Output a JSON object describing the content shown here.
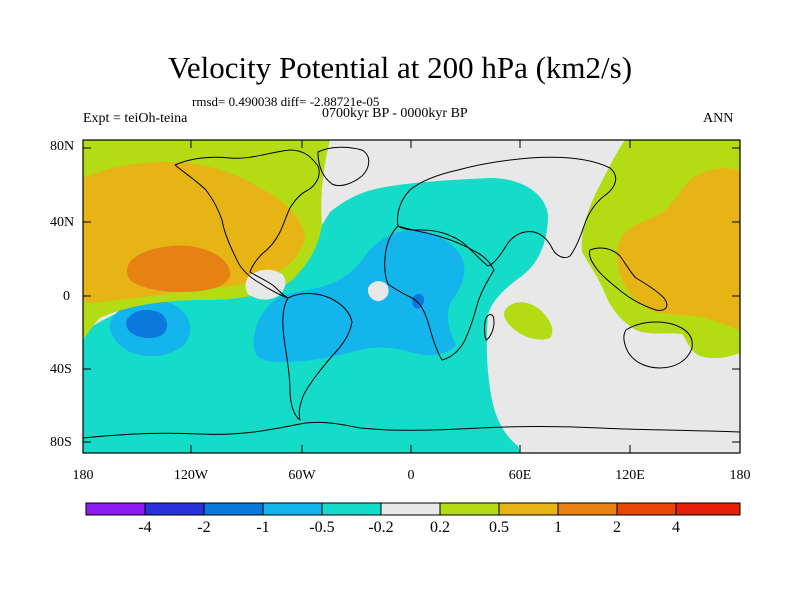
{
  "title": "Velocity Potential at 200 hPa (km2/s)",
  "stats": "rmsd= 0.490038 diff= -2.88721e-05",
  "experiment": "Expt = teiOh-teina",
  "period": "0700kyr BP - 0000kyr BP",
  "season": "ANN",
  "y_ticks": [
    {
      "label": "80N",
      "lat": 80
    },
    {
      "label": "40N",
      "lat": 40
    },
    {
      "label": "0",
      "lat": 0
    },
    {
      "label": "40S",
      "lat": -40
    },
    {
      "label": "80S",
      "lat": -80
    }
  ],
  "x_ticks": [
    {
      "label": "180",
      "lon": -180
    },
    {
      "label": "120W",
      "lon": -120
    },
    {
      "label": "60W",
      "lon": -60
    },
    {
      "label": "0",
      "lon": 0
    },
    {
      "label": "60E",
      "lon": 60
    },
    {
      "label": "120E",
      "lon": 120
    },
    {
      "label": "180",
      "lon": 180
    }
  ],
  "colorbar": {
    "colors": [
      "#8c1cf0",
      "#2832d8",
      "#0a78dc",
      "#14b4ec",
      "#14dcc8",
      "#e8e8e8",
      "#b4dc14",
      "#e6b414",
      "#e68214",
      "#e6460a",
      "#e61e0a"
    ],
    "labels": [
      "-4",
      "-2",
      "-1",
      "-0.5",
      "-0.2",
      "0.2",
      "0.5",
      "1",
      "2",
      "4"
    ]
  }
}
